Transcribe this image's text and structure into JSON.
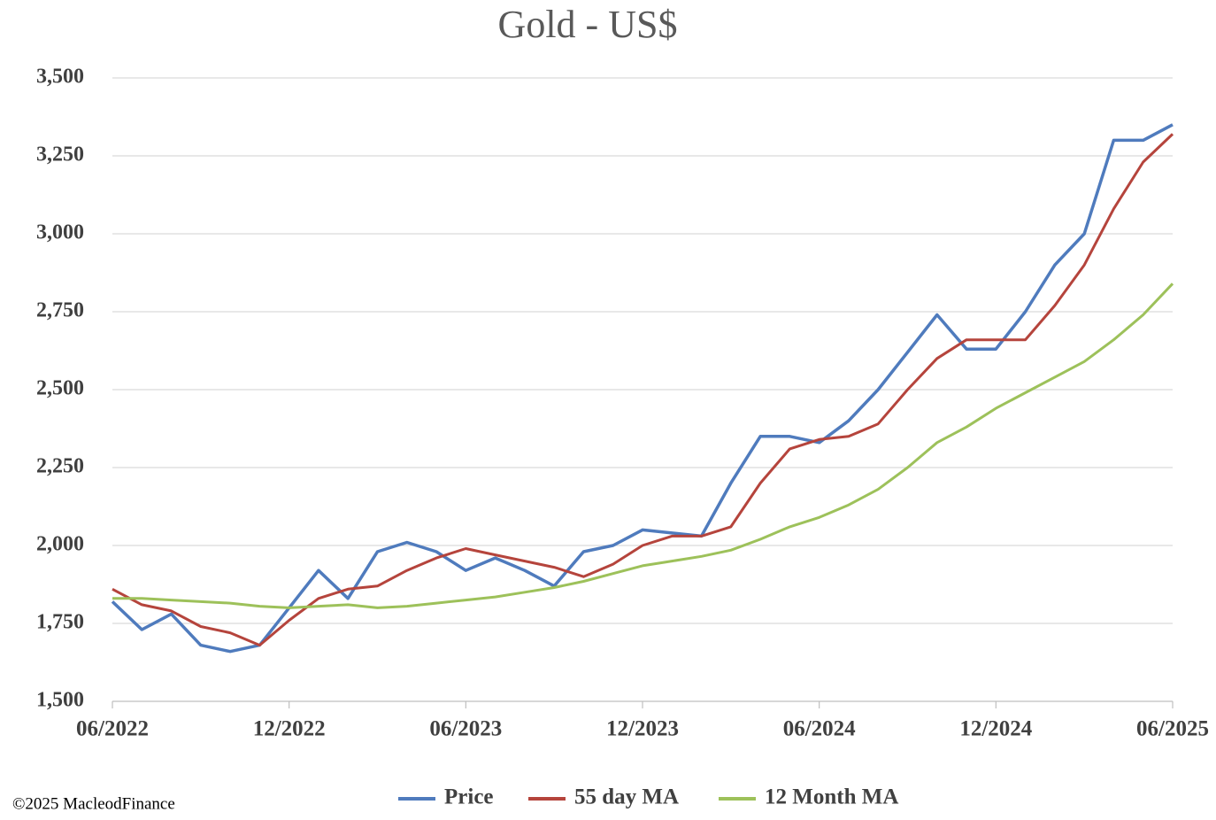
{
  "chart_data": {
    "type": "line",
    "title": "Gold - US$",
    "categories": [
      "06/2022",
      null,
      null,
      null,
      null,
      null,
      "12/2022",
      null,
      null,
      null,
      null,
      null,
      "06/2023",
      null,
      null,
      null,
      null,
      null,
      "12/2023",
      null,
      null,
      null,
      null,
      null,
      "06/2024",
      null,
      null,
      null,
      null,
      null,
      "12/2024",
      null,
      null,
      null,
      null,
      null,
      "06/2025"
    ],
    "series": [
      {
        "name": "Price",
        "color": "#4f7bbd",
        "values": [
          1820,
          1730,
          1780,
          1680,
          1660,
          1680,
          1800,
          1920,
          1830,
          1980,
          2010,
          1980,
          1920,
          1960,
          1920,
          1870,
          1980,
          2000,
          2050,
          2040,
          2030,
          2200,
          2350,
          2350,
          2330,
          2400,
          2500,
          2620,
          2740,
          2630,
          2630,
          2750,
          2900,
          3000,
          3300,
          3300,
          3350
        ]
      },
      {
        "name": "55 day MA",
        "color": "#b5443c",
        "values": [
          1860,
          1810,
          1790,
          1740,
          1720,
          1680,
          1760,
          1830,
          1860,
          1870,
          1920,
          1960,
          1990,
          1970,
          1950,
          1930,
          1900,
          1940,
          2000,
          2030,
          2030,
          2060,
          2200,
          2310,
          2340,
          2350,
          2390,
          2500,
          2600,
          2660,
          2660,
          2660,
          2770,
          2900,
          3080,
          3230,
          3320
        ]
      },
      {
        "name": "12 Month MA",
        "color": "#9dc15a",
        "values": [
          1830,
          1830,
          1825,
          1820,
          1815,
          1805,
          1800,
          1805,
          1810,
          1800,
          1805,
          1815,
          1825,
          1835,
          1850,
          1865,
          1885,
          1910,
          1935,
          1950,
          1965,
          1985,
          2020,
          2060,
          2090,
          2130,
          2180,
          2250,
          2330,
          2380,
          2440,
          2490,
          2540,
          2590,
          2660,
          2740,
          2840
        ]
      }
    ],
    "ylim": [
      1500,
      3500
    ],
    "yticks": [
      {
        "value": 1500,
        "label": "1,500"
      },
      {
        "value": 1750,
        "label": "1,750"
      },
      {
        "value": 2000,
        "label": "2,000"
      },
      {
        "value": 2250,
        "label": "2,250"
      },
      {
        "value": 2500,
        "label": "2,500"
      },
      {
        "value": 2750,
        "label": "2,750"
      },
      {
        "value": 3000,
        "label": "3,000"
      },
      {
        "value": 3250,
        "label": "3,250"
      },
      {
        "value": 3500,
        "label": "3,500"
      }
    ],
    "grid": true,
    "legend": "bottom",
    "footer": "©2025 MacleodFinance"
  }
}
